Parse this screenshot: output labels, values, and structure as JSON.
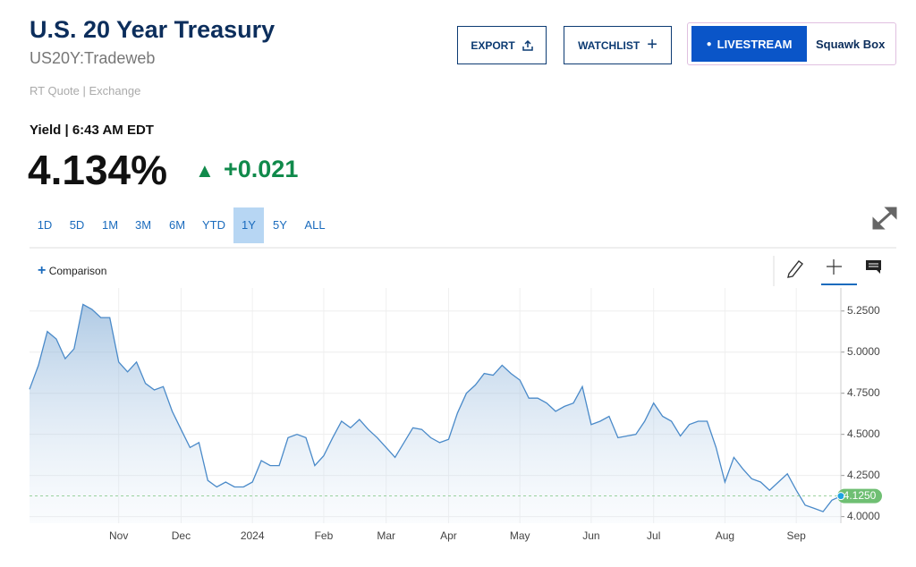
{
  "header": {
    "title": "U.S. 20 Year Treasury",
    "symbol": "US20Y:Tradeweb",
    "quote_note": "RT Quote | Exchange"
  },
  "buttons": {
    "export": "EXPORT",
    "watchlist": "WATCHLIST",
    "livestream": "LIVESTREAM",
    "squawk": "Squawk Box"
  },
  "quote": {
    "label": "Yield | 6:43 AM EDT",
    "price": "4.134%",
    "change": "+0.021"
  },
  "ranges": [
    "1D",
    "5D",
    "1M",
    "3M",
    "6M",
    "YTD",
    "1Y",
    "5Y",
    "ALL"
  ],
  "active_range": "1Y",
  "comparison": "Comparison",
  "chart_data": {
    "type": "line",
    "color": "#4a8ac9",
    "grid": true,
    "categories": [
      null,
      null,
      null,
      null,
      null,
      null,
      null,
      null,
      null,
      null,
      "Nov",
      null,
      null,
      null,
      null,
      null,
      null,
      "Dec",
      null,
      null,
      null,
      null,
      null,
      null,
      null,
      "2024",
      null,
      null,
      null,
      null,
      null,
      null,
      null,
      "Feb",
      null,
      null,
      null,
      null,
      null,
      null,
      "Mar",
      null,
      null,
      null,
      null,
      null,
      null,
      "Apr",
      null,
      null,
      null,
      null,
      null,
      null,
      null,
      "May",
      null,
      null,
      null,
      null,
      null,
      null,
      null,
      "Jun",
      null,
      null,
      null,
      null,
      null,
      null,
      "Jul",
      null,
      null,
      null,
      null,
      null,
      null,
      null,
      "Aug",
      null,
      null,
      null,
      null,
      null,
      null,
      null,
      "Sep",
      null,
      null,
      null,
      null,
      null
    ],
    "values": [
      4.774,
      4.92,
      5.125,
      5.08,
      4.96,
      5.02,
      5.29,
      5.26,
      5.21,
      5.21,
      4.94,
      4.88,
      4.94,
      4.81,
      4.77,
      4.79,
      4.64,
      4.53,
      4.42,
      4.45,
      4.22,
      4.18,
      4.21,
      4.18,
      4.18,
      4.21,
      4.34,
      4.31,
      4.31,
      4.48,
      4.5,
      4.48,
      4.31,
      4.37,
      4.48,
      4.58,
      4.54,
      4.59,
      4.53,
      4.48,
      4.42,
      4.36,
      4.45,
      4.54,
      4.53,
      4.48,
      4.45,
      4.47,
      4.63,
      4.75,
      4.8,
      4.87,
      4.86,
      4.92,
      4.87,
      4.83,
      4.72,
      4.72,
      4.69,
      4.64,
      4.67,
      4.69,
      4.79,
      4.56,
      4.58,
      4.61,
      4.48,
      4.49,
      4.5,
      4.58,
      4.69,
      4.61,
      4.58,
      4.49,
      4.56,
      4.58,
      4.58,
      4.42,
      4.21,
      4.36,
      4.29,
      4.23,
      4.21,
      4.16,
      4.21,
      4.26,
      4.16,
      4.07,
      4.05,
      4.03,
      4.1,
      4.125
    ],
    "ylim": [
      3.96,
      5.39
    ],
    "yticks": [
      {
        "value": 4.0,
        "label": "4.0000"
      },
      {
        "value": 4.25,
        "label": "4.2500"
      },
      {
        "value": 4.5,
        "label": "4.5000"
      },
      {
        "value": 4.75,
        "label": "4.7500"
      },
      {
        "value": 5.0,
        "label": "5.0000"
      },
      {
        "value": 5.25,
        "label": "5.2500"
      }
    ],
    "last": {
      "value": 4.125,
      "label": "4.1250"
    }
  }
}
